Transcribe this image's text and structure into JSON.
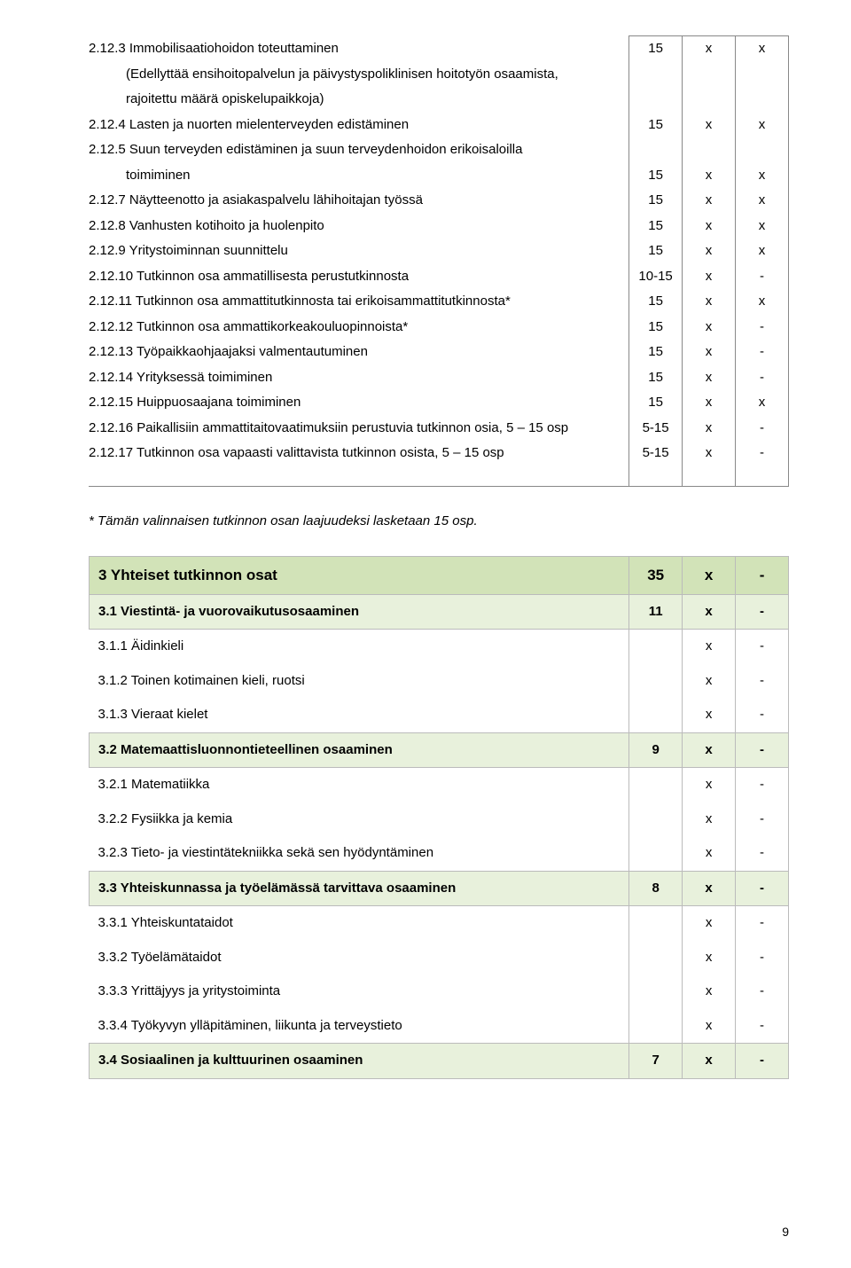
{
  "main_rows": [
    {
      "label": "2.12.3 Immobilisaatiohoidon toteuttaminen",
      "num": "15",
      "c1": "x",
      "c2": "x"
    },
    {
      "label": "(Edellyttää ensihoitopalvelun ja päivystyspoliklinisen hoitotyön osaamista,",
      "num": "",
      "c1": "",
      "c2": "",
      "indent": true
    },
    {
      "label": "rajoitettu määrä opiskelupaikkoja)",
      "num": "",
      "c1": "",
      "c2": "",
      "indent": true
    },
    {
      "label": "2.12.4 Lasten ja nuorten mielenterveyden edistäminen",
      "num": "15",
      "c1": "x",
      "c2": "x"
    },
    {
      "label": "2.12.5 Suun terveyden edistäminen ja suun terveydenhoidon erikoisaloilla",
      "num": "",
      "c1": "",
      "c2": ""
    },
    {
      "label": "toimiminen",
      "num": "15",
      "c1": "x",
      "c2": "x",
      "indent": true
    },
    {
      "label": "2.12.7 Näytteenotto ja asiakaspalvelu lähihoitajan työssä",
      "num": "15",
      "c1": "x",
      "c2": "x"
    },
    {
      "label": "2.12.8 Vanhusten kotihoito ja huolenpito",
      "num": "15",
      "c1": "x",
      "c2": "x"
    },
    {
      "label": "2.12.9 Yritystoiminnan suunnittelu",
      "num": "15",
      "c1": "x",
      "c2": "x"
    },
    {
      "label": "2.12.10 Tutkinnon osa ammatillisesta perustutkinnosta",
      "num": "10-15",
      "c1": "x",
      "c2": "-"
    },
    {
      "label": "2.12.11 Tutkinnon osa ammattitutkinnosta tai erikoisammattitutkinnosta*",
      "num": "15",
      "c1": "x",
      "c2": "x"
    },
    {
      "label": "2.12.12 Tutkinnon osa ammattikorkeakouluopinnoista*",
      "num": "15",
      "c1": "x",
      "c2": "-"
    },
    {
      "label": "2.12.13 Työpaikkaohjaajaksi valmentautuminen",
      "num": "15",
      "c1": "x",
      "c2": "-"
    },
    {
      "label": "2.12.14 Yrityksessä toimiminen",
      "num": "15",
      "c1": "x",
      "c2": "-"
    },
    {
      "label": "2.12.15 Huippuosaajana toimiminen",
      "num": "15",
      "c1": "x",
      "c2": "x"
    },
    {
      "label": "2.12.16 Paikallisiin ammattitaitovaatimuksiin perustuvia tutkinnon osia, 5 – 15 osp",
      "num": "5-15",
      "c1": "x",
      "c2": "-"
    },
    {
      "label": "2.12.17 Tutkinnon osa vapaasti valittavista tutkinnon osista, 5 – 15 osp",
      "num": "5-15",
      "c1": "x",
      "c2": "-"
    }
  ],
  "footnote": "* Tämän valinnaisen tutkinnon osan laajuudeksi lasketaan 15 osp.",
  "section_rows": [
    {
      "type": "main",
      "label": "3 Yhteiset tutkinnon osat",
      "num": "35",
      "c1": "x",
      "c2": "-"
    },
    {
      "type": "sub",
      "label": "3.1 Viestintä- ja vuorovaikutusosaaminen",
      "num": "11",
      "c1": "x",
      "c2": "-"
    },
    {
      "type": "plain",
      "label": "3.1.1 Äidinkieli",
      "num": "",
      "c1": "x",
      "c2": "-"
    },
    {
      "type": "plain",
      "label": "3.1.2 Toinen kotimainen kieli, ruotsi",
      "num": "",
      "c1": "x",
      "c2": "-"
    },
    {
      "type": "plain",
      "label": "3.1.3 Vieraat kielet",
      "num": "",
      "c1": "x",
      "c2": "-"
    },
    {
      "type": "sub",
      "label": "3.2 Matemaattisluonnontieteellinen osaaminen",
      "num": "9",
      "c1": "x",
      "c2": "-"
    },
    {
      "type": "plain",
      "label": "3.2.1 Matematiikka",
      "num": "",
      "c1": "x",
      "c2": "-"
    },
    {
      "type": "plain",
      "label": "3.2.2 Fysiikka ja kemia",
      "num": "",
      "c1": "x",
      "c2": "-"
    },
    {
      "type": "plain",
      "label": "3.2.3 Tieto- ja viestintätekniikka sekä sen hyödyntäminen",
      "num": "",
      "c1": "x",
      "c2": "-"
    },
    {
      "type": "sub",
      "label": "3.3 Yhteiskunnassa ja työelämässä tarvittava osaaminen",
      "num": "8",
      "c1": "x",
      "c2": "-"
    },
    {
      "type": "plain",
      "label": "3.3.1 Yhteiskuntataidot",
      "num": "",
      "c1": "x",
      "c2": "-"
    },
    {
      "type": "plain",
      "label": "3.3.2 Työelämätaidot",
      "num": "",
      "c1": "x",
      "c2": "-"
    },
    {
      "type": "plain",
      "label": "3.3.3 Yrittäjyys ja yritystoiminta",
      "num": "",
      "c1": "x",
      "c2": "-"
    },
    {
      "type": "plain",
      "label": "3.3.4 Työkyvyn ylläpitäminen, liikunta ja terveystieto",
      "num": "",
      "c1": "x",
      "c2": "-"
    },
    {
      "type": "sub",
      "label": "3.4 Sosiaalinen ja kulttuurinen osaaminen",
      "num": "7",
      "c1": "x",
      "c2": "-"
    }
  ],
  "page_number": "9"
}
